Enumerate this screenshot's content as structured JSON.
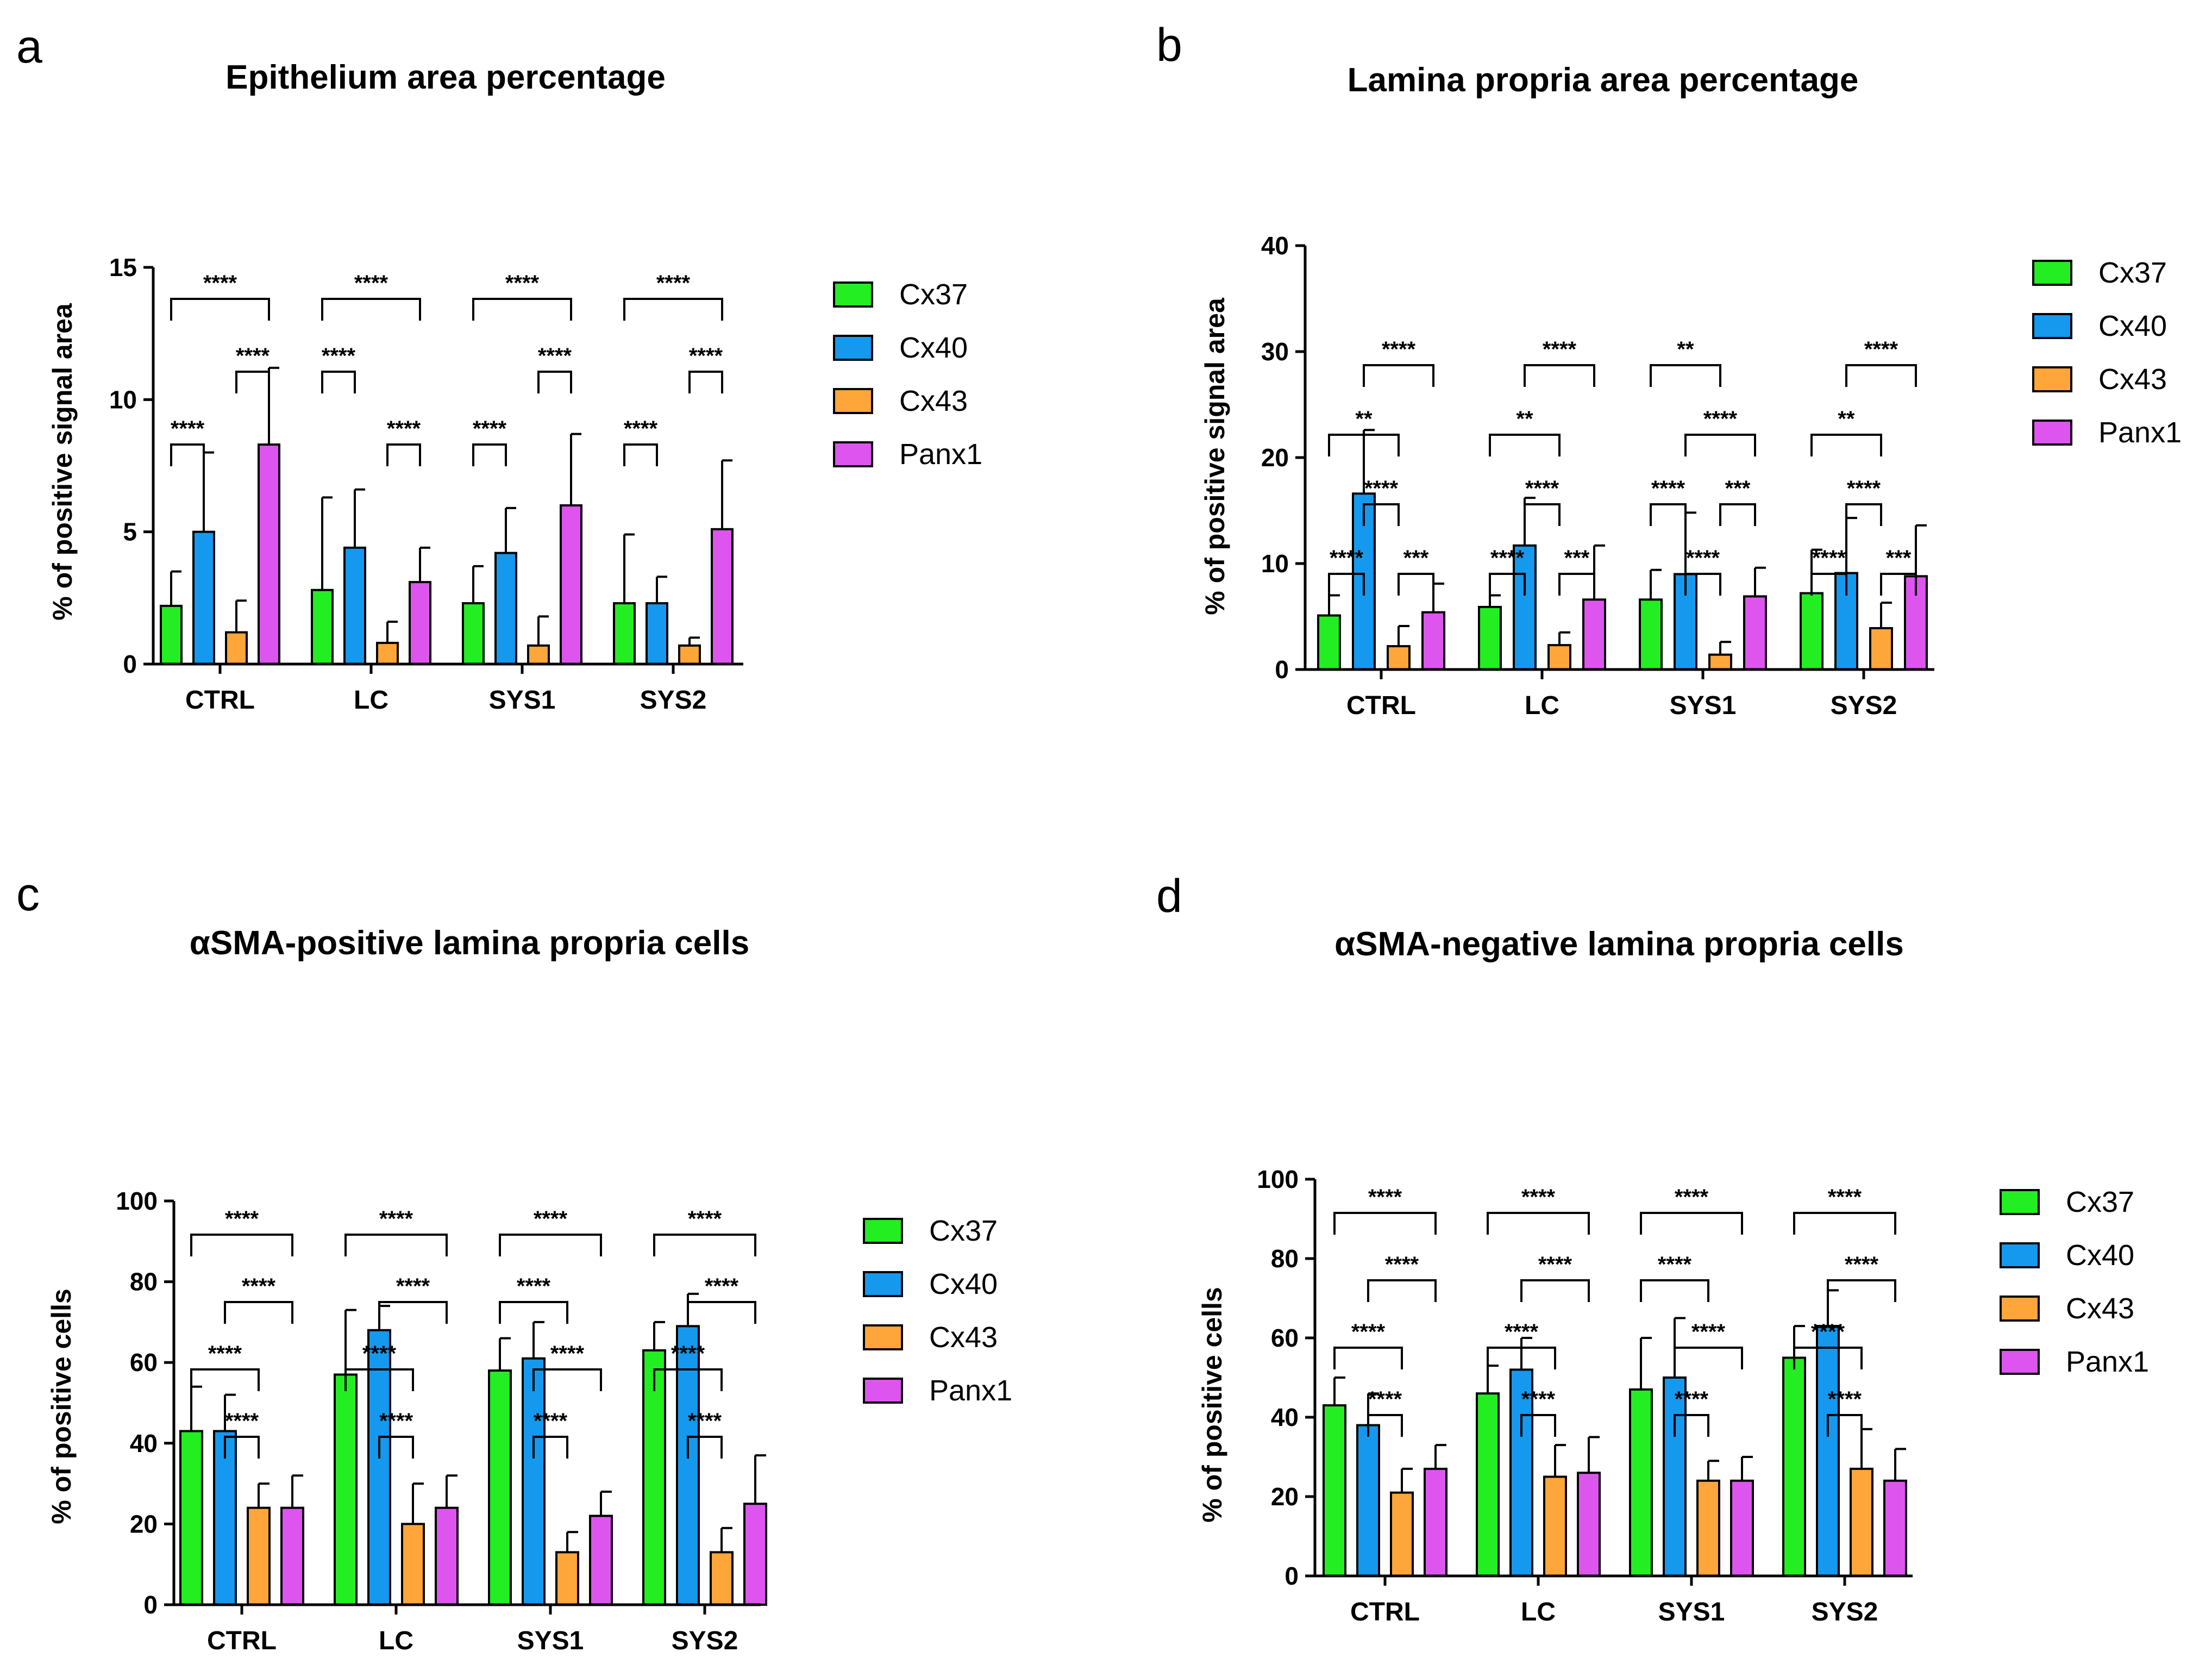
{
  "colors": {
    "Cx37": "#22ee22",
    "Cx40": "#1599ee",
    "Cx43": "#ffa63a",
    "Panx1": "#dd55ee"
  },
  "chart_data": [
    {
      "panel": "a",
      "type": "bar",
      "title": "Epithelium area percentage",
      "ylabel": "% of positive signal area",
      "xlabel": "",
      "ylim": [
        0,
        15
      ],
      "yticks": [
        "0",
        "5",
        "10",
        "15"
      ],
      "categories": [
        "CTRL",
        "LC",
        "SYS1",
        "SYS2"
      ],
      "series": [
        {
          "name": "Cx37",
          "values": [
            2.2,
            2.8,
            2.3,
            2.3
          ],
          "errors": [
            1.3,
            3.5,
            1.4,
            2.6
          ]
        },
        {
          "name": "Cx40",
          "values": [
            5.0,
            4.4,
            4.2,
            2.3
          ],
          "errors": [
            3.0,
            2.2,
            1.7,
            1.0
          ]
        },
        {
          "name": "Cx43",
          "values": [
            1.2,
            0.8,
            0.7,
            0.7
          ],
          "errors": [
            1.2,
            0.8,
            1.1,
            0.3
          ]
        },
        {
          "name": "Panx1",
          "values": [
            8.3,
            3.1,
            6.0,
            5.1
          ],
          "errors": [
            2.9,
            1.3,
            2.7,
            2.6
          ]
        }
      ],
      "significance": [
        {
          "group": 0,
          "from": 0,
          "to": 3,
          "level": 1,
          "label": "****"
        },
        {
          "group": 0,
          "from": 2,
          "to": 3,
          "level": 2,
          "label": "****"
        },
        {
          "group": 0,
          "from": 0,
          "to": 1,
          "level": 3,
          "label": "****"
        },
        {
          "group": 1,
          "from": 0,
          "to": 3,
          "level": 1,
          "label": "****"
        },
        {
          "group": 1,
          "from": 0,
          "to": 1,
          "level": 2,
          "label": "****"
        },
        {
          "group": 1,
          "from": 2,
          "to": 3,
          "level": 3,
          "label": "****"
        },
        {
          "group": 2,
          "from": 0,
          "to": 3,
          "level": 1,
          "label": "****"
        },
        {
          "group": 2,
          "from": 2,
          "to": 3,
          "level": 2,
          "label": "****"
        },
        {
          "group": 2,
          "from": 0,
          "to": 1,
          "level": 3,
          "label": "****"
        },
        {
          "group": 3,
          "from": 0,
          "to": 3,
          "level": 1,
          "label": "****"
        },
        {
          "group": 3,
          "from": 2,
          "to": 3,
          "level": 2,
          "label": "****"
        },
        {
          "group": 3,
          "from": 0,
          "to": 1,
          "level": 3,
          "label": "****"
        }
      ]
    },
    {
      "panel": "b",
      "type": "bar",
      "title": "Lamina propria area percentage",
      "ylabel": "% of positive signal area",
      "xlabel": "",
      "ylim": [
        0,
        40
      ],
      "yticks": [
        "0",
        "10",
        "20",
        "30",
        "40"
      ],
      "categories": [
        "CTRL",
        "LC",
        "SYS1",
        "SYS2"
      ],
      "series": [
        {
          "name": "Cx37",
          "values": [
            5.1,
            5.9,
            6.6,
            7.2
          ],
          "errors": [
            1.9,
            1.1,
            2.8,
            4.1
          ]
        },
        {
          "name": "Cx40",
          "values": [
            16.6,
            11.7,
            9.0,
            9.1
          ],
          "errors": [
            6.0,
            4.5,
            5.8,
            5.2
          ]
        },
        {
          "name": "Cx43",
          "values": [
            2.2,
            2.3,
            1.4,
            3.9
          ],
          "errors": [
            1.9,
            1.2,
            1.2,
            2.4
          ]
        },
        {
          "name": "Panx1",
          "values": [
            5.4,
            6.6,
            6.9,
            8.8
          ],
          "errors": [
            2.7,
            5.1,
            2.7,
            4.8
          ]
        }
      ],
      "significance": [
        {
          "group": 0,
          "from": 1,
          "to": 3,
          "level": 1,
          "label": "****"
        },
        {
          "group": 0,
          "from": 0,
          "to": 2,
          "level": 2,
          "label": "**"
        },
        {
          "group": 0,
          "from": 1,
          "to": 2,
          "level": 3,
          "label": "****"
        },
        {
          "group": 0,
          "from": 0,
          "to": 1,
          "level": 4,
          "label": "****"
        },
        {
          "group": 0,
          "from": 2,
          "to": 3,
          "level": 4,
          "label": "***"
        },
        {
          "group": 1,
          "from": 1,
          "to": 3,
          "level": 1,
          "label": "****"
        },
        {
          "group": 1,
          "from": 0,
          "to": 2,
          "level": 2,
          "label": "**"
        },
        {
          "group": 1,
          "from": 1,
          "to": 2,
          "level": 3,
          "label": "****"
        },
        {
          "group": 1,
          "from": 0,
          "to": 1,
          "level": 4,
          "label": "****"
        },
        {
          "group": 1,
          "from": 2,
          "to": 3,
          "level": 4,
          "label": "***"
        },
        {
          "group": 2,
          "from": 0,
          "to": 2,
          "level": 1,
          "label": "**"
        },
        {
          "group": 2,
          "from": 1,
          "to": 3,
          "level": 2,
          "label": "****"
        },
        {
          "group": 2,
          "from": 0,
          "to": 1,
          "level": 3,
          "label": "****"
        },
        {
          "group": 2,
          "from": 2,
          "to": 3,
          "level": 3,
          "label": "***"
        },
        {
          "group": 2,
          "from": 1,
          "to": 2,
          "level": 4,
          "label": "****"
        },
        {
          "group": 3,
          "from": 1,
          "to": 3,
          "level": 1,
          "label": "****"
        },
        {
          "group": 3,
          "from": 0,
          "to": 2,
          "level": 2,
          "label": "**"
        },
        {
          "group": 3,
          "from": 1,
          "to": 2,
          "level": 3,
          "label": "****"
        },
        {
          "group": 3,
          "from": 0,
          "to": 1,
          "level": 4,
          "label": "****"
        },
        {
          "group": 3,
          "from": 2,
          "to": 3,
          "level": 4,
          "label": "***"
        }
      ]
    },
    {
      "panel": "c",
      "type": "bar",
      "title": "αSMA-positive lamina propria cells",
      "ylabel": "% of positive cells",
      "xlabel": "",
      "ylim": [
        0,
        100
      ],
      "yticks": [
        "0",
        "20",
        "40",
        "60",
        "80",
        "100"
      ],
      "categories": [
        "CTRL",
        "LC",
        "SYS1",
        "SYS2"
      ],
      "series": [
        {
          "name": "Cx37",
          "values": [
            43,
            57,
            58,
            63
          ],
          "errors": [
            11,
            16,
            8,
            7
          ]
        },
        {
          "name": "Cx40",
          "values": [
            43,
            68,
            61,
            69
          ],
          "errors": [
            9,
            6,
            9,
            8
          ]
        },
        {
          "name": "Cx43",
          "values": [
            24,
            20,
            13,
            13
          ],
          "errors": [
            6,
            10,
            5,
            6
          ]
        },
        {
          "name": "Panx1",
          "values": [
            24,
            24,
            22,
            25
          ],
          "errors": [
            8,
            8,
            6,
            12
          ]
        }
      ],
      "significance": [
        {
          "group": 0,
          "from": 0,
          "to": 3,
          "level": 1,
          "label": "****"
        },
        {
          "group": 0,
          "from": 1,
          "to": 3,
          "level": 2,
          "label": "****"
        },
        {
          "group": 0,
          "from": 0,
          "to": 2,
          "level": 3,
          "label": "****"
        },
        {
          "group": 0,
          "from": 1,
          "to": 2,
          "level": 4,
          "label": "****"
        },
        {
          "group": 1,
          "from": 0,
          "to": 3,
          "level": 1,
          "label": "****"
        },
        {
          "group": 1,
          "from": 1,
          "to": 3,
          "level": 2,
          "label": "****"
        },
        {
          "group": 1,
          "from": 0,
          "to": 2,
          "level": 3,
          "label": "****"
        },
        {
          "group": 1,
          "from": 1,
          "to": 2,
          "level": 4,
          "label": "****"
        },
        {
          "group": 2,
          "from": 0,
          "to": 3,
          "level": 1,
          "label": "****"
        },
        {
          "group": 2,
          "from": 0,
          "to": 2,
          "level": 2,
          "label": "****"
        },
        {
          "group": 2,
          "from": 1,
          "to": 3,
          "level": 3,
          "label": "****"
        },
        {
          "group": 2,
          "from": 1,
          "to": 2,
          "level": 4,
          "label": "****"
        },
        {
          "group": 3,
          "from": 0,
          "to": 3,
          "level": 1,
          "label": "****"
        },
        {
          "group": 3,
          "from": 1,
          "to": 3,
          "level": 2,
          "label": "****"
        },
        {
          "group": 3,
          "from": 0,
          "to": 2,
          "level": 3,
          "label": "****"
        },
        {
          "group": 3,
          "from": 1,
          "to": 2,
          "level": 4,
          "label": "****"
        }
      ]
    },
    {
      "panel": "d",
      "type": "bar",
      "title": "αSMA-negative lamina propria cells",
      "ylabel": "% of positive cells",
      "xlabel": "",
      "ylim": [
        0,
        100
      ],
      "yticks": [
        "0",
        "20",
        "40",
        "60",
        "80",
        "100"
      ],
      "categories": [
        "CTRL",
        "LC",
        "SYS1",
        "SYS2"
      ],
      "series": [
        {
          "name": "Cx37",
          "values": [
            43,
            46,
            47,
            55
          ],
          "errors": [
            7,
            7,
            13,
            8
          ]
        },
        {
          "name": "Cx40",
          "values": [
            38,
            52,
            50,
            63
          ],
          "errors": [
            8,
            8,
            15,
            9
          ]
        },
        {
          "name": "Cx43",
          "values": [
            21,
            25,
            24,
            27
          ],
          "errors": [
            6,
            8,
            5,
            10
          ]
        },
        {
          "name": "Panx1",
          "values": [
            27,
            26,
            24,
            24
          ],
          "errors": [
            6,
            9,
            6,
            8
          ]
        }
      ],
      "significance": [
        {
          "group": 0,
          "from": 0,
          "to": 3,
          "level": 1,
          "label": "****"
        },
        {
          "group": 0,
          "from": 1,
          "to": 3,
          "level": 2,
          "label": "****"
        },
        {
          "group": 0,
          "from": 0,
          "to": 2,
          "level": 3,
          "label": "****"
        },
        {
          "group": 0,
          "from": 1,
          "to": 2,
          "level": 4,
          "label": "****"
        },
        {
          "group": 1,
          "from": 0,
          "to": 3,
          "level": 1,
          "label": "****"
        },
        {
          "group": 1,
          "from": 1,
          "to": 3,
          "level": 2,
          "label": "****"
        },
        {
          "group": 1,
          "from": 0,
          "to": 2,
          "level": 3,
          "label": "****"
        },
        {
          "group": 1,
          "from": 1,
          "to": 2,
          "level": 4,
          "label": "****"
        },
        {
          "group": 2,
          "from": 0,
          "to": 3,
          "level": 1,
          "label": "****"
        },
        {
          "group": 2,
          "from": 0,
          "to": 2,
          "level": 2,
          "label": "****"
        },
        {
          "group": 2,
          "from": 1,
          "to": 3,
          "level": 3,
          "label": "****"
        },
        {
          "group": 2,
          "from": 1,
          "to": 2,
          "level": 4,
          "label": "****"
        },
        {
          "group": 3,
          "from": 0,
          "to": 3,
          "level": 1,
          "label": "****"
        },
        {
          "group": 3,
          "from": 1,
          "to": 3,
          "level": 2,
          "label": "****"
        },
        {
          "group": 3,
          "from": 0,
          "to": 2,
          "level": 3,
          "label": "****"
        },
        {
          "group": 3,
          "from": 1,
          "to": 2,
          "level": 4,
          "label": "****"
        }
      ]
    }
  ]
}
